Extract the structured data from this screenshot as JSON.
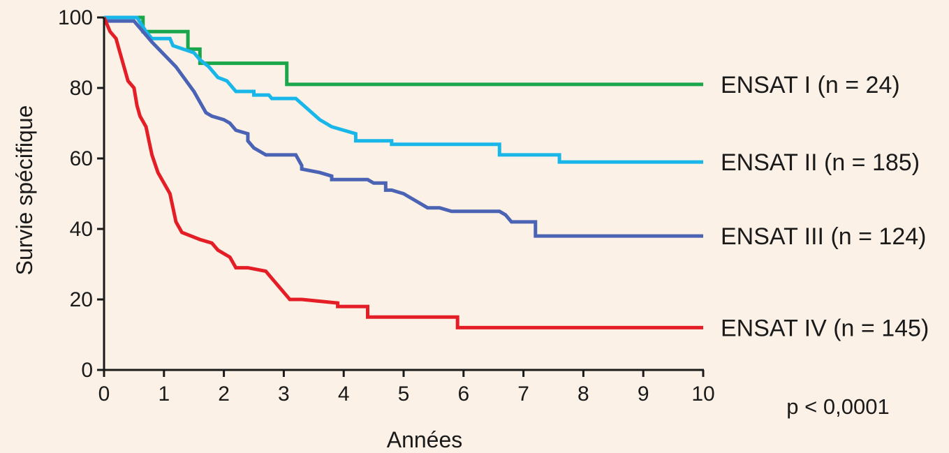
{
  "chart_data": {
    "type": "line",
    "step": true,
    "xlabel": "Années",
    "ylabel": "Survie spécifique",
    "xlim": [
      0,
      10
    ],
    "ylim": [
      0,
      100
    ],
    "xticks": [
      0,
      1,
      2,
      3,
      4,
      5,
      6,
      7,
      8,
      9,
      10
    ],
    "yticks": [
      0,
      20,
      40,
      60,
      80,
      100
    ],
    "grid": false,
    "annotation": "p < 0,0001",
    "series": [
      {
        "name": "ENSAT I (n = 24)",
        "color": "#1aa64a",
        "points": [
          [
            0,
            100
          ],
          [
            0.65,
            100
          ],
          [
            0.65,
            96
          ],
          [
            1.4,
            96
          ],
          [
            1.4,
            91
          ],
          [
            1.6,
            91
          ],
          [
            1.6,
            87
          ],
          [
            3.05,
            87
          ],
          [
            3.05,
            81
          ],
          [
            10,
            81
          ]
        ]
      },
      {
        "name": "ENSAT II (n = 185)",
        "color": "#19b6ea",
        "points": [
          [
            0,
            100
          ],
          [
            0.55,
            100
          ],
          [
            0.7,
            96
          ],
          [
            0.8,
            94
          ],
          [
            1.1,
            94
          ],
          [
            1.15,
            92
          ],
          [
            1.5,
            90
          ],
          [
            1.6,
            88
          ],
          [
            1.75,
            86
          ],
          [
            1.9,
            83
          ],
          [
            2.05,
            82
          ],
          [
            2.1,
            81
          ],
          [
            2.2,
            79
          ],
          [
            2.5,
            79
          ],
          [
            2.5,
            78
          ],
          [
            2.75,
            78
          ],
          [
            2.8,
            77
          ],
          [
            3.2,
            77
          ],
          [
            3.4,
            74
          ],
          [
            3.6,
            71
          ],
          [
            3.8,
            69
          ],
          [
            4.0,
            68
          ],
          [
            4.2,
            67
          ],
          [
            4.2,
            65
          ],
          [
            4.8,
            65
          ],
          [
            4.8,
            64
          ],
          [
            6.6,
            64
          ],
          [
            6.6,
            61
          ],
          [
            7.6,
            61
          ],
          [
            7.6,
            59
          ],
          [
            10,
            59
          ]
        ]
      },
      {
        "name": "ENSAT III (n = 124)",
        "color": "#4b63b4",
        "points": [
          [
            0,
            99
          ],
          [
            0.5,
            99
          ],
          [
            0.8,
            93
          ],
          [
            1.2,
            86
          ],
          [
            1.5,
            79
          ],
          [
            1.7,
            73
          ],
          [
            1.8,
            72
          ],
          [
            2.0,
            71
          ],
          [
            2.1,
            70
          ],
          [
            2.2,
            68
          ],
          [
            2.4,
            67
          ],
          [
            2.4,
            65
          ],
          [
            2.5,
            63
          ],
          [
            2.6,
            62
          ],
          [
            2.7,
            61
          ],
          [
            3.2,
            61
          ],
          [
            3.3,
            58
          ],
          [
            3.3,
            57
          ],
          [
            3.6,
            56
          ],
          [
            3.8,
            55
          ],
          [
            3.8,
            54
          ],
          [
            4.4,
            54
          ],
          [
            4.5,
            53
          ],
          [
            4.7,
            53
          ],
          [
            4.7,
            51
          ],
          [
            4.8,
            51
          ],
          [
            5.0,
            50
          ],
          [
            5.1,
            49
          ],
          [
            5.2,
            48
          ],
          [
            5.4,
            46
          ],
          [
            5.6,
            46
          ],
          [
            5.8,
            45
          ],
          [
            6.6,
            45
          ],
          [
            6.7,
            44
          ],
          [
            6.8,
            42
          ],
          [
            7.2,
            42
          ],
          [
            7.2,
            38
          ],
          [
            10,
            38
          ]
        ]
      },
      {
        "name": "ENSAT IV (n = 145)",
        "color": "#e41e26",
        "points": [
          [
            0,
            100
          ],
          [
            0.1,
            96
          ],
          [
            0.2,
            94
          ],
          [
            0.25,
            91
          ],
          [
            0.35,
            85
          ],
          [
            0.4,
            82
          ],
          [
            0.5,
            80
          ],
          [
            0.55,
            75
          ],
          [
            0.6,
            72
          ],
          [
            0.7,
            69
          ],
          [
            0.75,
            65
          ],
          [
            0.8,
            61
          ],
          [
            0.9,
            56
          ],
          [
            1.0,
            53
          ],
          [
            1.1,
            50
          ],
          [
            1.15,
            46
          ],
          [
            1.2,
            42
          ],
          [
            1.3,
            39
          ],
          [
            1.45,
            38
          ],
          [
            1.6,
            37
          ],
          [
            1.8,
            36
          ],
          [
            1.9,
            34
          ],
          [
            2.0,
            33
          ],
          [
            2.1,
            32
          ],
          [
            2.2,
            29
          ],
          [
            2.4,
            29
          ],
          [
            2.7,
            28
          ],
          [
            2.8,
            26
          ],
          [
            2.9,
            24
          ],
          [
            3.0,
            22
          ],
          [
            3.1,
            20
          ],
          [
            3.3,
            20
          ],
          [
            3.9,
            19
          ],
          [
            3.9,
            18
          ],
          [
            4.4,
            18
          ],
          [
            4.4,
            15
          ],
          [
            5.9,
            15
          ],
          [
            5.9,
            12
          ],
          [
            10,
            12
          ]
        ]
      }
    ]
  }
}
